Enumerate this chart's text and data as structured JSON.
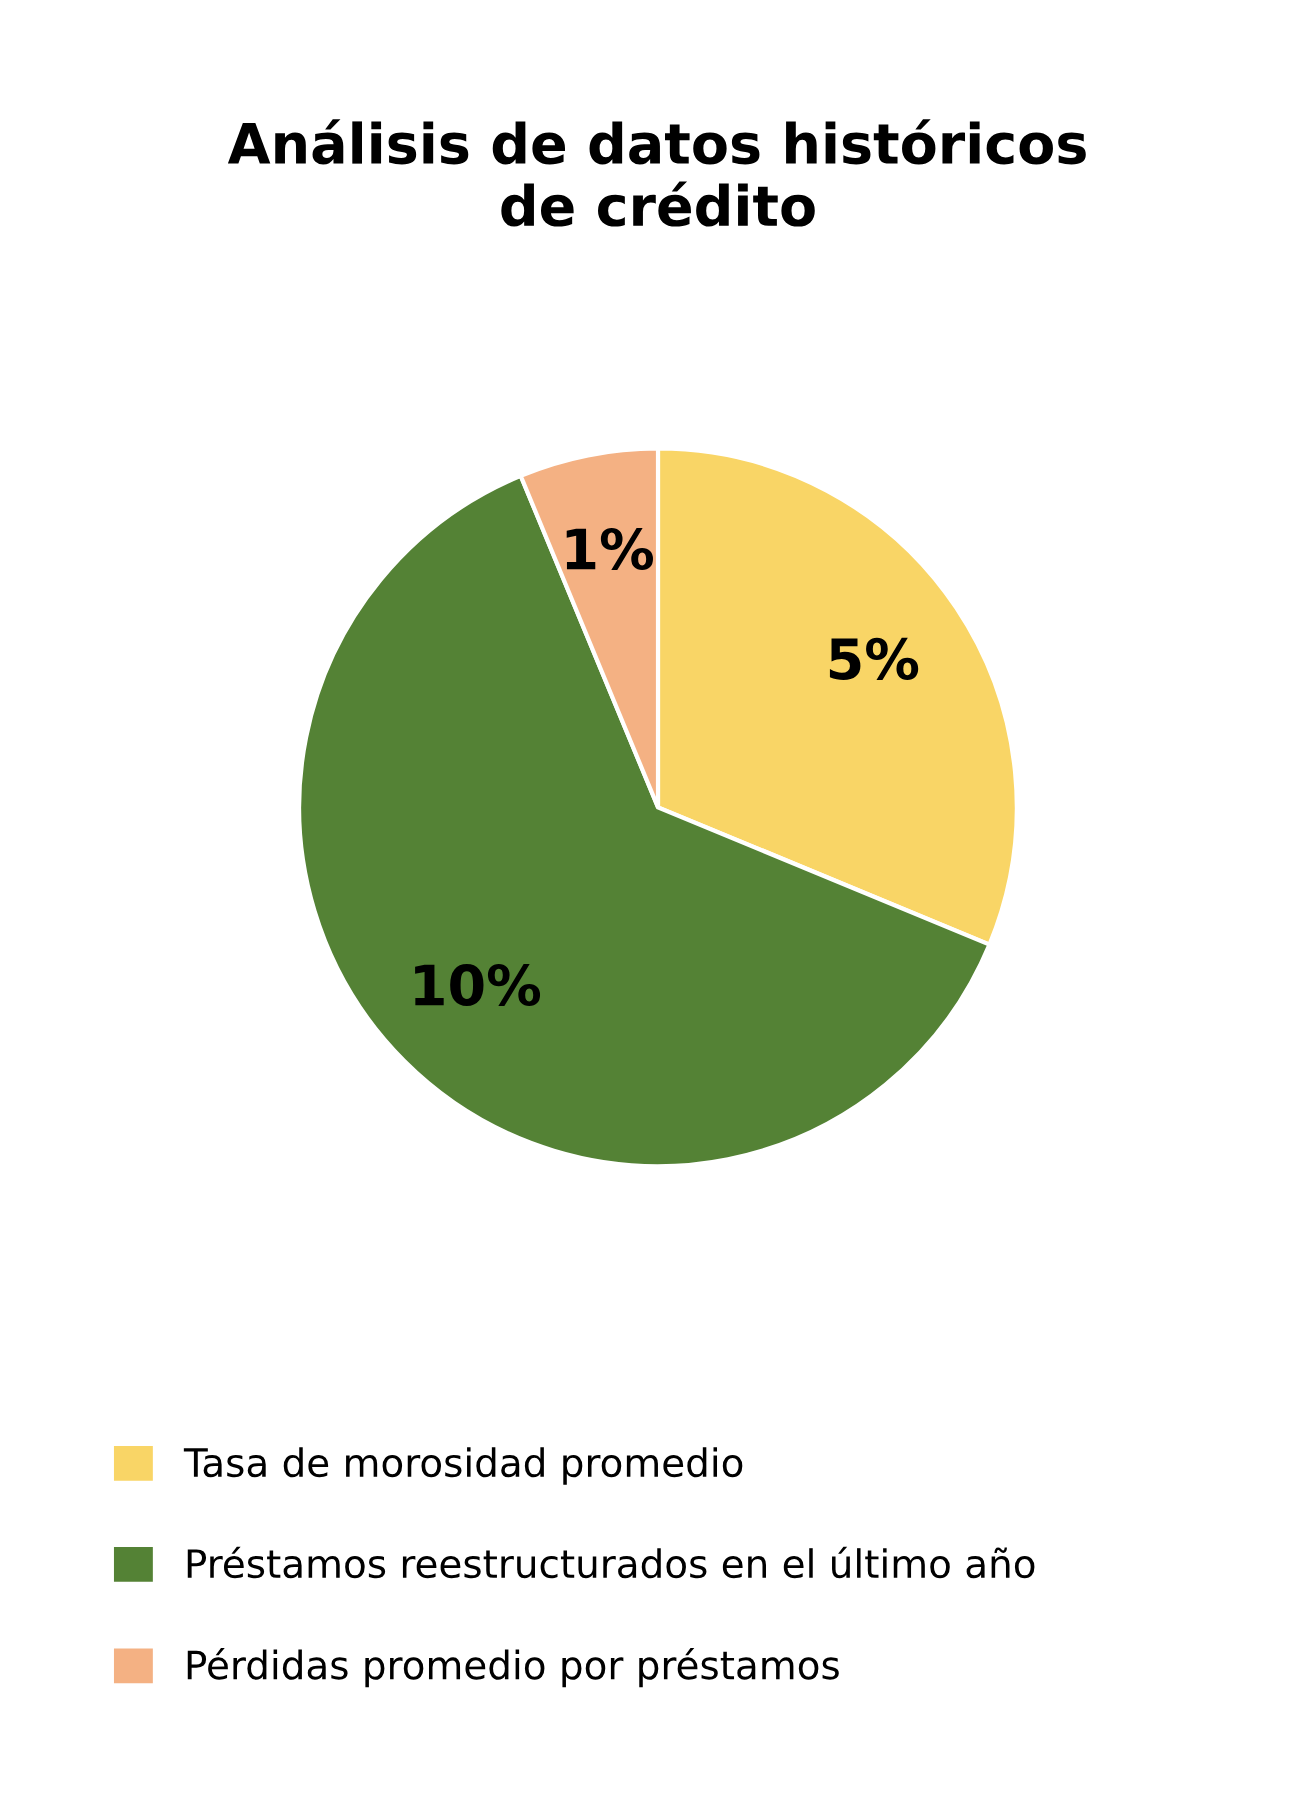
{
  "chart_data": {
    "type": "pie",
    "title": "Análisis de datos históricos\nde crédito",
    "categories": [
      "Tasa de morosidad promedio",
      "Préstamos reestructurados en el último año",
      "Pérdidas promedio por préstamos"
    ],
    "values": [
      5,
      10,
      1
    ],
    "colors": [
      "#f9d566",
      "#548235",
      "#f4b183"
    ],
    "value_labels": [
      "5%",
      "10%",
      "1%"
    ],
    "legend": "bottom"
  }
}
